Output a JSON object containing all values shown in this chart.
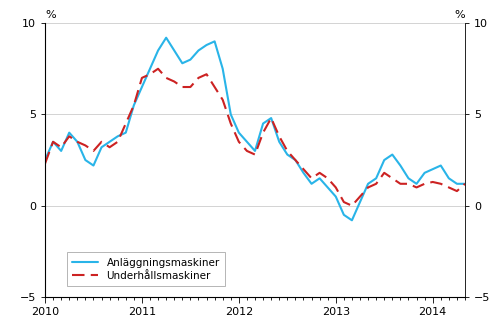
{
  "ylabel_left": "%",
  "ylabel_right": "%",
  "ylim": [
    -5,
    10
  ],
  "yticks": [
    -5,
    0,
    5,
    10
  ],
  "xtick_labels": [
    "2010",
    "2011",
    "2012",
    "2013",
    "2014"
  ],
  "legend_entries": [
    "Anläggningsmaskiner",
    "Underhållsmaskiner"
  ],
  "line1_color": "#29b4e8",
  "line2_color": "#cc2222",
  "background_color": "#ffffff",
  "anlagg_x": [
    0,
    1,
    2,
    3,
    4,
    5,
    6,
    7,
    8,
    9,
    10,
    11,
    12,
    13,
    14,
    15,
    16,
    17,
    18,
    19,
    20,
    21,
    22,
    23,
    24,
    25,
    26,
    27,
    28,
    29,
    30,
    31,
    32,
    33,
    34,
    35,
    36,
    37,
    38,
    39,
    40,
    41,
    42,
    43,
    44,
    45,
    46,
    47,
    48,
    49,
    50,
    51,
    52
  ],
  "anlagg_y": [
    2.5,
    3.5,
    3.0,
    4.0,
    3.5,
    2.5,
    2.2,
    3.2,
    3.5,
    3.8,
    4.0,
    5.5,
    6.5,
    7.5,
    8.5,
    9.2,
    8.5,
    7.8,
    8.0,
    8.5,
    8.8,
    9.0,
    7.5,
    5.0,
    4.0,
    3.5,
    3.0,
    4.5,
    4.8,
    3.5,
    2.8,
    2.5,
    1.8,
    1.2,
    1.5,
    1.0,
    0.5,
    -0.5,
    -0.8,
    0.2,
    1.2,
    1.5,
    2.5,
    2.8,
    2.2,
    1.5,
    1.2,
    1.8,
    2.0,
    2.2,
    1.5,
    1.2,
    1.2
  ],
  "underh_x": [
    0,
    1,
    2,
    3,
    4,
    5,
    6,
    7,
    8,
    9,
    10,
    11,
    12,
    13,
    14,
    15,
    16,
    17,
    18,
    19,
    20,
    21,
    22,
    23,
    24,
    25,
    26,
    27,
    28,
    29,
    30,
    31,
    32,
    33,
    34,
    35,
    36,
    37,
    38,
    39,
    40,
    41,
    42,
    43,
    44,
    45,
    46,
    47,
    48,
    49,
    50,
    51,
    52
  ],
  "underh_y": [
    2.3,
    3.5,
    3.2,
    3.8,
    3.5,
    3.3,
    3.0,
    3.5,
    3.2,
    3.5,
    4.5,
    5.5,
    7.0,
    7.2,
    7.5,
    7.0,
    6.8,
    6.5,
    6.5,
    7.0,
    7.2,
    6.5,
    5.8,
    4.5,
    3.5,
    3.0,
    2.8,
    4.0,
    4.8,
    3.8,
    3.0,
    2.5,
    2.0,
    1.5,
    1.8,
    1.5,
    1.0,
    0.2,
    0.0,
    0.5,
    1.0,
    1.2,
    1.8,
    1.5,
    1.2,
    1.2,
    1.0,
    1.2,
    1.3,
    1.2,
    1.0,
    0.8,
    1.2
  ]
}
